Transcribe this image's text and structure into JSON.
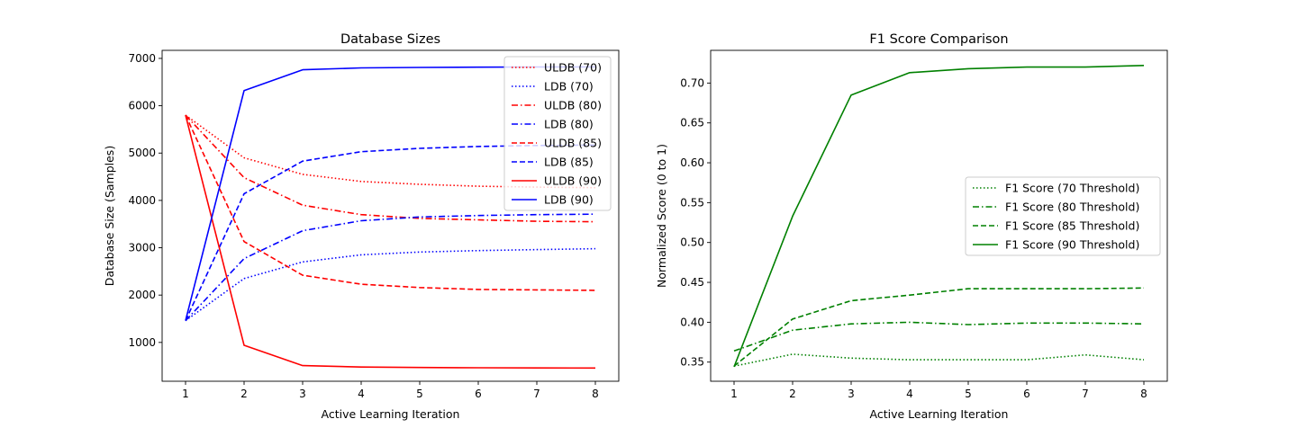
{
  "chart_data": [
    {
      "type": "line",
      "title": "Database Sizes",
      "xlabel": "Active Learning Iteration",
      "ylabel": "Database Size (Samples)",
      "x": [
        1,
        2,
        3,
        4,
        5,
        6,
        7,
        8
      ],
      "xlim": [
        0.6,
        8.4
      ],
      "ylim": [
        180,
        7170
      ],
      "yticks": [
        1000,
        2000,
        3000,
        4000,
        5000,
        6000,
        7000
      ],
      "xticks": [
        1,
        2,
        3,
        4,
        5,
        6,
        7,
        8
      ],
      "legend_position": "top-right",
      "series": [
        {
          "name": "ULDB (70)",
          "color": "#ff0000",
          "style": "dotted",
          "values": [
            5800,
            4900,
            4550,
            4400,
            4340,
            4300,
            4280,
            4270
          ]
        },
        {
          "name": "LDB (70)",
          "color": "#0000ff",
          "style": "dotted",
          "values": [
            1460,
            2350,
            2700,
            2850,
            2910,
            2940,
            2960,
            2980
          ]
        },
        {
          "name": "ULDB (80)",
          "color": "#ff0000",
          "style": "dashdot",
          "values": [
            5800,
            4480,
            3900,
            3700,
            3620,
            3590,
            3560,
            3550
          ]
        },
        {
          "name": "LDB (80)",
          "color": "#0000ff",
          "style": "dashdot",
          "values": [
            1460,
            2770,
            3360,
            3570,
            3650,
            3680,
            3700,
            3710
          ]
        },
        {
          "name": "ULDB (85)",
          "color": "#ff0000",
          "style": "dashed",
          "values": [
            5800,
            3130,
            2420,
            2230,
            2160,
            2120,
            2110,
            2100
          ]
        },
        {
          "name": "LDB (85)",
          "color": "#0000ff",
          "style": "dashed",
          "values": [
            1460,
            4140,
            4830,
            5030,
            5100,
            5140,
            5160,
            5170
          ]
        },
        {
          "name": "ULDB (90)",
          "color": "#ff0000",
          "style": "solid",
          "values": [
            5800,
            940,
            510,
            480,
            470,
            465,
            462,
            460
          ]
        },
        {
          "name": "LDB (90)",
          "color": "#0000ff",
          "style": "solid",
          "values": [
            1460,
            6320,
            6760,
            6800,
            6810,
            6815,
            6818,
            6820
          ]
        }
      ]
    },
    {
      "type": "line",
      "title": "F1 Score Comparison",
      "xlabel": "Active Learning Iteration",
      "ylabel": "Normalized Score (0 to 1)",
      "x": [
        1,
        2,
        3,
        4,
        5,
        6,
        7,
        8
      ],
      "xlim": [
        0.6,
        8.4
      ],
      "ylim": [
        0.326,
        0.741
      ],
      "yticks": [
        0.35,
        0.4,
        0.45,
        0.5,
        0.55,
        0.6,
        0.65,
        0.7
      ],
      "ytick_labels": [
        "0.35",
        "0.40",
        "0.45",
        "0.50",
        "0.55",
        "0.60",
        "0.65",
        "0.70"
      ],
      "xticks": [
        1,
        2,
        3,
        4,
        5,
        6,
        7,
        8
      ],
      "legend_position": "center-right",
      "series": [
        {
          "name": "F1 Score (70 Threshold)",
          "color": "#008000",
          "style": "dotted",
          "values": [
            0.345,
            0.36,
            0.355,
            0.353,
            0.353,
            0.353,
            0.359,
            0.353
          ]
        },
        {
          "name": "F1 Score (80 Threshold)",
          "color": "#008000",
          "style": "dashdot",
          "values": [
            0.364,
            0.39,
            0.398,
            0.4,
            0.397,
            0.399,
            0.399,
            0.398
          ]
        },
        {
          "name": "F1 Score (85 Threshold)",
          "color": "#008000",
          "style": "dashed",
          "values": [
            0.345,
            0.404,
            0.427,
            0.434,
            0.442,
            0.442,
            0.442,
            0.443
          ]
        },
        {
          "name": "F1 Score (90 Threshold)",
          "color": "#008000",
          "style": "solid",
          "values": [
            0.344,
            0.533,
            0.685,
            0.713,
            0.718,
            0.72,
            0.72,
            0.722
          ]
        }
      ]
    }
  ]
}
